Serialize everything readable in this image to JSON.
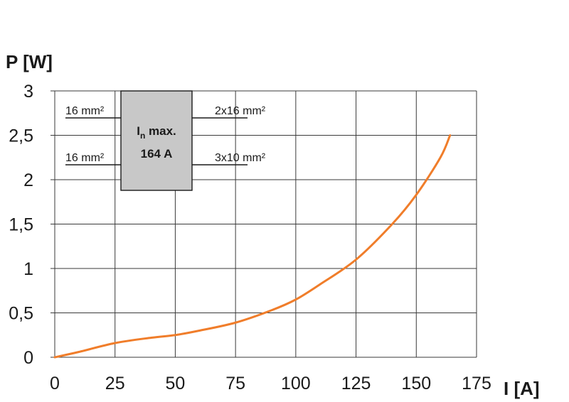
{
  "chart_data": {
    "type": "line",
    "xlabel": "I [A]",
    "ylabel": "P [W]",
    "xlim": [
      0,
      175
    ],
    "ylim": [
      0,
      3
    ],
    "x_ticks": [
      0,
      25,
      50,
      75,
      100,
      125,
      150,
      175
    ],
    "x_tick_labels": [
      "0",
      "25",
      "50",
      "75",
      "100",
      "125",
      "150",
      "175"
    ],
    "y_ticks": [
      0,
      0.5,
      1,
      1.5,
      2,
      2.5,
      3
    ],
    "y_tick_labels": [
      "0",
      "0,5",
      "1",
      "1,5",
      "2",
      "2,5",
      "3"
    ],
    "grid": true,
    "series": [
      {
        "color": "#f07d2a",
        "x": [
          0,
          10,
          25,
          40,
          50,
          60,
          75,
          90,
          100,
          110,
          125,
          140,
          150,
          160,
          164
        ],
        "y": [
          0,
          0.06,
          0.16,
          0.22,
          0.25,
          0.3,
          0.39,
          0.53,
          0.65,
          0.82,
          1.1,
          1.5,
          1.83,
          2.25,
          2.5
        ]
      }
    ],
    "annotation": {
      "box_line1": "I",
      "box_line1_sub": "n",
      "box_line1_rest": " max.",
      "box_line2": "164 A",
      "left_wires": [
        "16 mm²",
        "16 mm²"
      ],
      "right_wires": [
        "2x16 mm²",
        "3x10 mm²"
      ],
      "box_color": "#c8c8c8"
    }
  }
}
